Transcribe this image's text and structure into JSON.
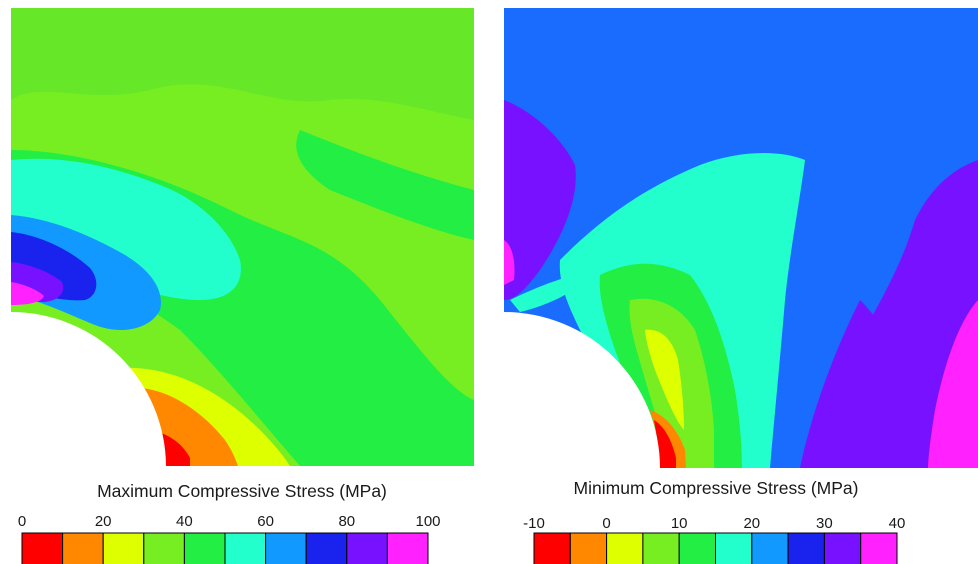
{
  "chart_data": [
    {
      "type": "heatmap",
      "title": "Maximum Compressive Stress (MPa)",
      "colorbar": {
        "ticks": [
          "0",
          "20",
          "40",
          "60",
          "80",
          "100"
        ],
        "min": 0,
        "max": 100,
        "step": 10,
        "colors": [
          "#ff0000",
          "#ff8800",
          "#ddff00",
          "#77ee22",
          "#22ee44",
          "#22ffcc",
          "#1199ff",
          "#1a22ee",
          "#7711ff",
          "#ff22ff"
        ]
      }
    },
    {
      "type": "heatmap",
      "title": "Minimum Compressive Stress (MPa)",
      "colorbar": {
        "ticks": [
          "-10",
          "0",
          "10",
          "20",
          "30",
          "40"
        ],
        "min": -10,
        "max": 40,
        "step": 5,
        "colors": [
          "#ff0000",
          "#ff8800",
          "#ddff00",
          "#77ee22",
          "#22ee44",
          "#22ffcc",
          "#1199ff",
          "#1a22ee",
          "#7711ff",
          "#ff22ff"
        ]
      }
    }
  ]
}
